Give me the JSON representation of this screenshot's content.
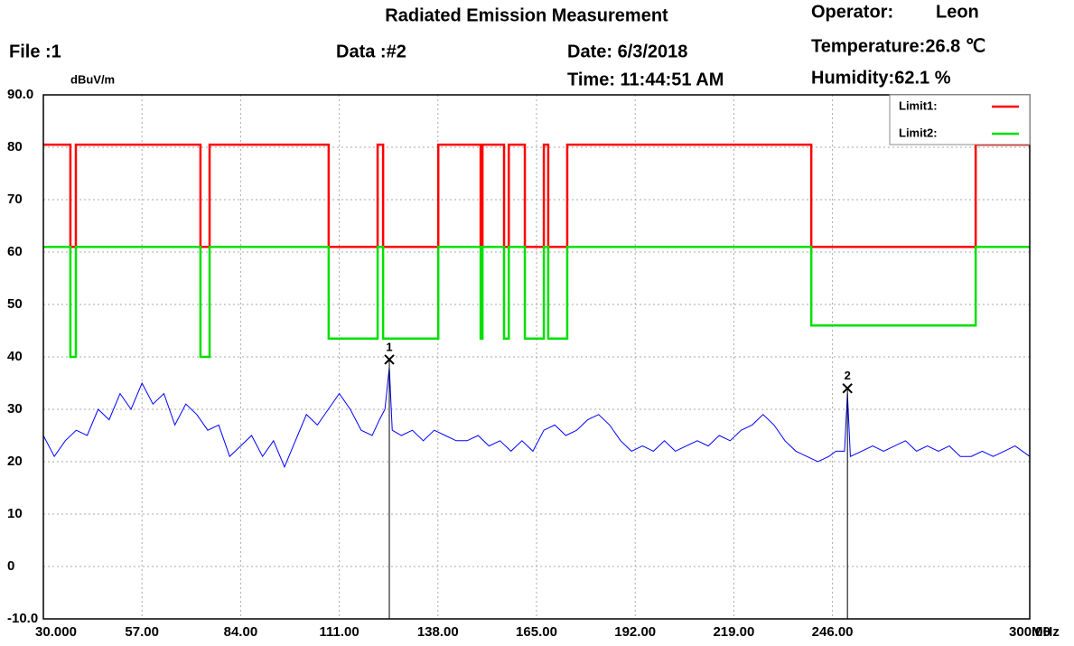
{
  "chart_data": {
    "type": "line",
    "title": "Radiated Emission Measurement",
    "file": "File :1",
    "data": "Data :#2",
    "date": "Date: 6/3/2018",
    "time": "Time: 11:44:51 AM",
    "operator": "Operator:",
    "operator_name": "Leon",
    "temperature": "Temperature:26.8 ℃",
    "humidity": "Humidity:62.1 %",
    "ylabel": "dBuV/m",
    "xlabel": "MHz",
    "xlim": [
      30,
      300
    ],
    "ylim": [
      -10,
      90
    ],
    "xticks": [
      {
        "value": 30,
        "label": "30.000"
      },
      {
        "value": 57,
        "label": "57.00"
      },
      {
        "value": 84,
        "label": "84.00"
      },
      {
        "value": 111,
        "label": "111.00"
      },
      {
        "value": 138,
        "label": "138.00"
      },
      {
        "value": 165,
        "label": "165.00"
      },
      {
        "value": 192,
        "label": "192.00"
      },
      {
        "value": 219,
        "label": "219.00"
      },
      {
        "value": 246,
        "label": "246.00"
      },
      {
        "value": 300,
        "label": "300.00"
      }
    ],
    "yticks": [
      {
        "value": 90,
        "label": "90.0"
      },
      80,
      70,
      60,
      50,
      40,
      30,
      20,
      10,
      0,
      {
        "value": -10,
        "label": "-10.0"
      }
    ],
    "grid": true,
    "legend": "upper right",
    "series": [
      {
        "name": "Limit1:",
        "color": "#ff0000",
        "drawstyle": "steps-post",
        "x": [
          30,
          37.4,
          38.9,
          73.0,
          75.5,
          108.1,
          121.5,
          123.0,
          138.1,
          149.7,
          150.2,
          156.1,
          157.4,
          161.8,
          167.0,
          168.2,
          173.4,
          240.2,
          285.2,
          300
        ],
        "values": [
          80.5,
          61,
          80.5,
          61,
          80.5,
          61,
          80.5,
          61,
          80.5,
          61,
          80.5,
          61,
          80.5,
          61,
          80.5,
          61,
          80.5,
          61,
          80.5,
          80.5
        ]
      },
      {
        "name": "Limit2:",
        "color": "#00e000",
        "drawstyle": "steps-post",
        "x": [
          30,
          37.4,
          38.9,
          73.0,
          75.5,
          108.1,
          121.5,
          123.0,
          138.1,
          149.7,
          150.2,
          156.1,
          157.4,
          161.8,
          167.0,
          168.2,
          173.4,
          240.2,
          285.2,
          300
        ],
        "values": [
          61,
          40,
          61,
          40,
          61,
          43.5,
          61,
          43.5,
          61,
          43.5,
          61,
          43.5,
          61,
          43.5,
          61,
          43.5,
          61,
          46,
          61,
          61
        ]
      },
      {
        "color": "#0000ff",
        "x": [
          30,
          33,
          36,
          39,
          42,
          45,
          48,
          51,
          54,
          57,
          60,
          63,
          66,
          69,
          72,
          75,
          78,
          81,
          84,
          87,
          90,
          93,
          96,
          99,
          102,
          105,
          108,
          111,
          114,
          117,
          120,
          122,
          123.5,
          124.7,
          125.5,
          128,
          131,
          134,
          137,
          140,
          143,
          146,
          149,
          152,
          155,
          158,
          161,
          164,
          167,
          170,
          173,
          176,
          179,
          182,
          185,
          188,
          191,
          194,
          197,
          200,
          203,
          206,
          209,
          212,
          215,
          218,
          221,
          224,
          227,
          230,
          233,
          236,
          239,
          242,
          245,
          247,
          249.3,
          250.1,
          250.9,
          254,
          257,
          260,
          263,
          266,
          269,
          272,
          275,
          278,
          281,
          284,
          287,
          290,
          293,
          296,
          300
        ],
        "values": [
          25,
          21,
          24,
          26,
          25,
          30,
          28,
          33,
          30,
          35,
          31,
          33,
          27,
          31,
          29,
          26,
          27,
          21,
          23,
          25,
          21,
          24,
          19,
          24,
          29,
          27,
          30,
          33,
          30,
          26,
          25,
          28,
          30,
          38,
          26,
          25,
          26,
          24,
          26,
          25,
          24,
          24,
          25,
          23,
          24,
          22,
          24,
          22,
          26,
          27,
          25,
          26,
          28,
          29,
          27,
          24,
          22,
          23,
          22,
          24,
          22,
          23,
          24,
          23,
          25,
          24,
          26,
          27,
          29,
          27,
          24,
          22,
          21,
          20,
          21,
          22,
          22,
          33,
          21,
          22,
          23,
          22,
          23,
          24,
          22,
          23,
          22,
          23,
          21,
          21,
          22,
          21,
          22,
          23,
          21
        ]
      }
    ],
    "markers": [
      {
        "label": "1",
        "x": 124.7,
        "value": 39.5
      },
      {
        "label": "2",
        "x": 250.1,
        "value": 34
      }
    ]
  }
}
